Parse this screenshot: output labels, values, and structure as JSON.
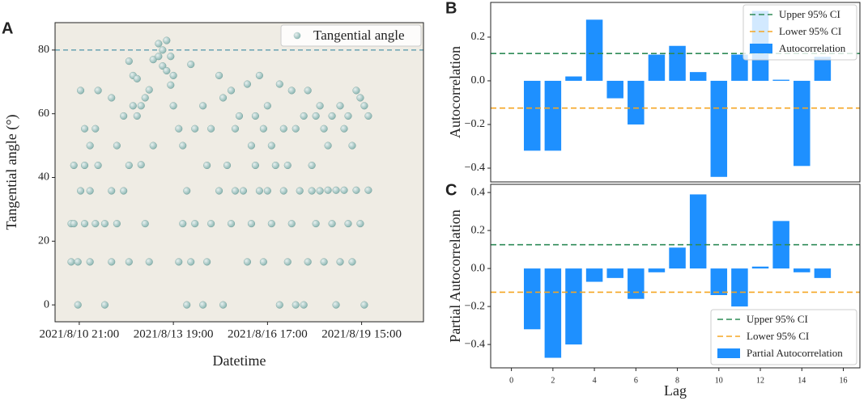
{
  "chart_data": [
    {
      "type": "scatter",
      "panel_label": "A",
      "x_label": "Datetime",
      "y_label": "Tangential angle (°)",
      "xlim": [
        "2021/8/10 03:00",
        "2021/8/21 13:00"
      ],
      "xticks": [
        "2021/8/10 21:00",
        "2021/8/13 19:00",
        "2021/8/16 17:00",
        "2021/8/19 15:00"
      ],
      "ylim": [
        -5.3,
        88.6
      ],
      "yticks": [
        0,
        20,
        40,
        60,
        80
      ],
      "hline": 80,
      "hline_color": "#4f93a8",
      "background": "#efece4",
      "legend": "upper right",
      "series": [
        {
          "name": "Tangential angle",
          "color": "#8fb8b4",
          "x": [
            "2021/8/10 15:00",
            "2021/8/10 15:00",
            "2021/8/10 17:00",
            "2021/8/10 17:00",
            "2021/8/10 20:00",
            "2021/8/10 20:00",
            "2021/8/10 22:00",
            "2021/8/10 22:00",
            "2021/8/11 01:00",
            "2021/8/11 01:00",
            "2021/8/11 01:00",
            "2021/8/11 05:00",
            "2021/8/11 05:00",
            "2021/8/11 05:00",
            "2021/8/11 09:00",
            "2021/8/11 09:00",
            "2021/8/11 11:00",
            "2021/8/11 11:00",
            "2021/8/11 16:00",
            "2021/8/11 16:00",
            "2021/8/11 21:00",
            "2021/8/11 21:00",
            "2021/8/11 21:00",
            "2021/8/12 01:00",
            "2021/8/12 01:00",
            "2021/8/12 06:00",
            "2021/8/12 06:00",
            "2021/8/12 10:00",
            "2021/8/12 10:00",
            "2021/8/12 10:00",
            "2021/8/12 13:00",
            "2021/8/12 13:00",
            "2021/8/12 16:00",
            "2021/8/12 16:00",
            "2021/8/12 19:00",
            "2021/8/12 19:00",
            "2021/8/12 22:00",
            "2021/8/12 22:00",
            "2021/8/13 01:00",
            "2021/8/13 01:00",
            "2021/8/13 04:00",
            "2021/8/13 04:00",
            "2021/8/13 08:00",
            "2021/8/13 08:00",
            "2021/8/13 11:00",
            "2021/8/13 11:00",
            "2021/8/13 14:00",
            "2021/8/13 14:00",
            "2021/8/13 17:00",
            "2021/8/13 17:00",
            "2021/8/13 19:00",
            "2021/8/13 19:00",
            "2021/8/13 23:00",
            "2021/8/13 23:00",
            "2021/8/14 02:00",
            "2021/8/14 02:00",
            "2021/8/14 05:00",
            "2021/8/14 05:00",
            "2021/8/14 08:00",
            "2021/8/14 08:00",
            "2021/8/14 11:00",
            "2021/8/14 11:00",
            "2021/8/14 17:00",
            "2021/8/14 17:00",
            "2021/8/14 20:00",
            "2021/8/14 20:00",
            "2021/8/14 23:00",
            "2021/8/14 23:00",
            "2021/8/15 05:00",
            "2021/8/15 05:00",
            "2021/8/15 08:00",
            "2021/8/15 08:00",
            "2021/8/15 11:00",
            "2021/8/15 14:00",
            "2021/8/15 14:00",
            "2021/8/15 17:00",
            "2021/8/15 17:00",
            "2021/8/15 20:00",
            "2021/8/15 23:00",
            "2021/8/16 02:00",
            "2021/8/16 02:00",
            "2021/8/16 05:00",
            "2021/8/16 05:00",
            "2021/8/16 08:00",
            "2021/8/16 08:00",
            "2021/8/16 11:00",
            "2021/8/16 11:00",
            "2021/8/16 14:00",
            "2021/8/16 14:00",
            "2021/8/16 17:00",
            "2021/8/16 17:00",
            "2021/8/16 20:00",
            "2021/8/16 20:00",
            "2021/8/16 23:00",
            "2021/8/17 02:00",
            "2021/8/17 02:00",
            "2021/8/17 05:00",
            "2021/8/17 05:00",
            "2021/8/17 08:00",
            "2021/8/17 08:00",
            "2021/8/17 11:00",
            "2021/8/17 11:00",
            "2021/8/17 14:00",
            "2021/8/17 14:00",
            "2021/8/17 17:00",
            "2021/8/17 20:00",
            "2021/8/17 20:00",
            "2021/8/17 23:00",
            "2021/8/17 23:00",
            "2021/8/18 02:00",
            "2021/8/18 02:00",
            "2021/8/18 05:00",
            "2021/8/18 05:00",
            "2021/8/18 08:00",
            "2021/8/18 08:00",
            "2021/8/18 11:00",
            "2021/8/18 11:00",
            "2021/8/18 14:00",
            "2021/8/18 14:00",
            "2021/8/18 17:00",
            "2021/8/18 17:00",
            "2021/8/18 20:00",
            "2021/8/18 20:00",
            "2021/8/18 23:00",
            "2021/8/18 23:00",
            "2021/8/19 02:00",
            "2021/8/19 02:00",
            "2021/8/19 05:00",
            "2021/8/19 05:00",
            "2021/8/19 08:00",
            "2021/8/19 08:00",
            "2021/8/19 11:00",
            "2021/8/19 11:00",
            "2021/8/19 14:00",
            "2021/8/19 14:00",
            "2021/8/19 17:00",
            "2021/8/19 17:00",
            "2021/8/19 20:00",
            "2021/8/19 20:00"
          ],
          "values": [
            25.5,
            13.5,
            43.8,
            25.5,
            13.5,
            0,
            35.8,
            67.3,
            55.3,
            43.8,
            25.5,
            35.8,
            13.5,
            50,
            55.3,
            25.5,
            67.3,
            43.8,
            0,
            25.5,
            65,
            35.8,
            13.5,
            50,
            25.5,
            59.3,
            35.8,
            76.5,
            43.8,
            13.5,
            72,
            62.5,
            71,
            59.3,
            62.5,
            44,
            65,
            25.5,
            67.5,
            13.5,
            77,
            50,
            82,
            78,
            80,
            75,
            83,
            73.5,
            78,
            69,
            72,
            62.5,
            55.3,
            13.5,
            50,
            25.5,
            35.8,
            0,
            75.5,
            13.5,
            55.3,
            25.5,
            62.5,
            0,
            43.8,
            13.5,
            55.3,
            25.5,
            72,
            35.8,
            65,
            0,
            43.8,
            67.3,
            25.5,
            55.3,
            35.8,
            59.3,
            35.8,
            69.3,
            13.5,
            50,
            25.5,
            59.3,
            43.8,
            72,
            35.8,
            55.3,
            13.5,
            62.5,
            35.8,
            50,
            25.5,
            43.8,
            69.3,
            0,
            55.3,
            35.8,
            43.8,
            13.5,
            67.3,
            25.5,
            55.3,
            0,
            35.8,
            59.3,
            0,
            67.3,
            13.5,
            43.8,
            35.8,
            59.3,
            25.5,
            62.5,
            35.8,
            55.3,
            13.5,
            50,
            36,
            59.3,
            25.5,
            36,
            0,
            62.5,
            13.5,
            55.3,
            36,
            59.3,
            25.5,
            50,
            13.5,
            67.3,
            36,
            65,
            25.5,
            62.5,
            0,
            59.3,
            36
          ]
        }
      ]
    },
    {
      "type": "bar",
      "panel_label": "B",
      "y_label": "Autocorrelation",
      "xlim": [
        -1.0,
        16.8
      ],
      "ylim": [
        -0.463,
        0.359
      ],
      "yticks": [
        {
          "value": -0.4,
          "label": "−0.4"
        },
        {
          "value": -0.2,
          "label": "−0.2"
        },
        {
          "value": 0,
          "label": "0.0"
        },
        {
          "value": 0.2,
          "label": "0.2"
        }
      ],
      "legend": "upper right",
      "ci": [
        {
          "name": "Upper 95% CI",
          "value": 0.125,
          "color": "#2e8b57"
        },
        {
          "name": "Lower 95% CI",
          "value": -0.125,
          "color": "#f5a623"
        }
      ],
      "series": [
        {
          "name": "Autocorrelation",
          "color": "#1e90ff",
          "x": [
            1,
            2,
            3,
            4,
            5,
            6,
            7,
            8,
            9,
            10,
            11,
            12,
            13,
            14,
            15
          ],
          "values": [
            -0.32,
            -0.32,
            0.02,
            0.28,
            -0.08,
            -0.2,
            0.12,
            0.16,
            0.04,
            -0.44,
            0.12,
            0.32,
            0.005,
            -0.39,
            0.11
          ]
        }
      ]
    },
    {
      "type": "bar",
      "panel_label": "C",
      "y_label": "Partial Autocorrelation",
      "x_label": "Lag",
      "xlim": [
        -1.0,
        16.8
      ],
      "xticks": [
        0,
        2,
        4,
        6,
        8,
        10,
        12,
        14,
        16
      ],
      "ylim": [
        -0.523,
        0.443
      ],
      "yticks": [
        {
          "value": -0.4,
          "label": "−0.4"
        },
        {
          "value": -0.2,
          "label": "−0.2"
        },
        {
          "value": 0,
          "label": "0.0"
        },
        {
          "value": 0.2,
          "label": "0.2"
        },
        {
          "value": 0.4,
          "label": "0.4"
        }
      ],
      "legend": "lower right",
      "ci": [
        {
          "name": "Upper 95% CI",
          "value": 0.125,
          "color": "#2e8b57"
        },
        {
          "name": "Lower 95% CI",
          "value": -0.125,
          "color": "#f5a623"
        }
      ],
      "series": [
        {
          "name": "Partial Autocorrelation",
          "color": "#1e90ff",
          "x": [
            1,
            2,
            3,
            4,
            5,
            6,
            7,
            8,
            9,
            10,
            11,
            12,
            13,
            14,
            15
          ],
          "values": [
            -0.32,
            -0.47,
            -0.4,
            -0.07,
            -0.05,
            -0.16,
            -0.02,
            0.11,
            0.39,
            -0.14,
            -0.2,
            0.01,
            0.25,
            -0.02,
            -0.05
          ]
        }
      ]
    }
  ]
}
